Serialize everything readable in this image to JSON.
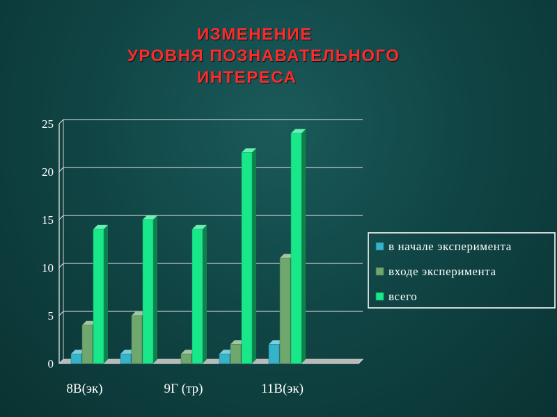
{
  "slide": {
    "title_lines": [
      "ИЗМЕНЕНИЕ",
      "УРОВНЯ  ПОЗНАВАТЕЛЬНОГО",
      "ИНТЕРЕСА"
    ],
    "title_color": "#ff2a2a",
    "text_color": "#ffffff",
    "background": "#114646"
  },
  "chart_data": {
    "type": "bar",
    "title": "",
    "xlabel": "",
    "ylabel": "",
    "categories": [
      "8В(эк)",
      "",
      "9Г (тр)",
      "",
      "11В(эк)"
    ],
    "series": [
      {
        "name": "в начале эксперимента",
        "values": [
          1,
          1,
          0,
          1,
          2
        ],
        "color": "#35b3c9"
      },
      {
        "name": "входе эксперимента",
        "values": [
          4,
          5,
          1,
          2,
          11
        ],
        "color": "#6fa86f"
      },
      {
        "name": "всего",
        "values": [
          14,
          15,
          14,
          22,
          24
        ],
        "color": "#19e88a"
      }
    ],
    "ylim": [
      0,
      25
    ],
    "yticks": [
      0,
      5,
      10,
      15,
      20,
      25
    ],
    "grid": true,
    "gridline_color": "#e9e9e9",
    "legend_position": "right"
  }
}
